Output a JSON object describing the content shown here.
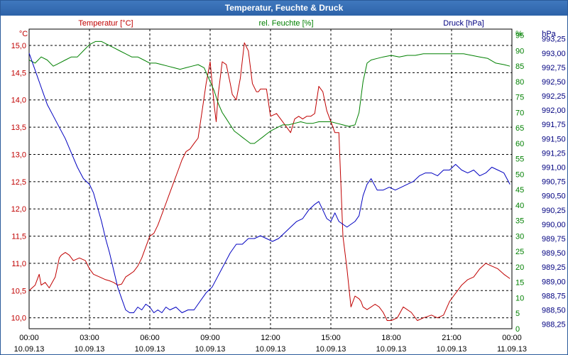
{
  "window": {
    "title": "Temperatur, Feuchte & Druck"
  },
  "chart_data": {
    "type": "line",
    "title": "Temperatur, Feuchte & Druck",
    "x_ticks": [
      {
        "time": "00:00",
        "date": "10.09.13"
      },
      {
        "time": "03:00",
        "date": "10.09.13"
      },
      {
        "time": "06:00",
        "date": "10.09.13"
      },
      {
        "time": "09:00",
        "date": "10.09.13"
      },
      {
        "time": "12:00",
        "date": "10.09.13"
      },
      {
        "time": "15:00",
        "date": "10.09.13"
      },
      {
        "time": "18:00",
        "date": "10.09.13"
      },
      {
        "time": "21:00",
        "date": "10.09.13"
      },
      {
        "time": "00:00",
        "date": "11.09.13"
      }
    ],
    "xlim": [
      0,
      24
    ],
    "grid": true,
    "axes": {
      "temperature": {
        "unit_label": "°C",
        "series_label": "Temperatur [°C]",
        "ylim": [
          9.8,
          15.3
        ],
        "ticks": [
          "10,0",
          "10,5",
          "11,0",
          "11,5",
          "12,0",
          "12,5",
          "13,0",
          "13,5",
          "14,0",
          "14,5",
          "15,0"
        ]
      },
      "humidity": {
        "unit_label": "%",
        "series_label": "rel. Feuchte [%]",
        "ylim": [
          0,
          97
        ],
        "ticks": [
          "0",
          "5",
          "10",
          "15",
          "20",
          "25",
          "30",
          "35",
          "40",
          "45",
          "50",
          "55",
          "60",
          "65",
          "70",
          "75",
          "80",
          "85",
          "90",
          "95"
        ]
      },
      "pressure": {
        "unit_label": "hPa",
        "series_label": "Druck [hPa]",
        "ylim": [
          988.17,
          993.42
        ],
        "ticks": [
          "988,25",
          "988,50",
          "988,75",
          "989,00",
          "989,25",
          "989,50",
          "989,75",
          "990,00",
          "990,25",
          "990,50",
          "990,75",
          "991,00",
          "991,25",
          "991,50",
          "991,75",
          "992,00",
          "992,25",
          "992,50",
          "992,75",
          "993,00",
          "993,25"
        ]
      }
    },
    "colors": {
      "temperature": "#c00000",
      "humidity": "#008000",
      "pressure": "#0000c0",
      "grid": "#000000",
      "title_bar": "#2d63a8"
    },
    "series": [
      {
        "name": "Temperatur [°C]",
        "axis": "temperature",
        "x": [
          0,
          0.3,
          0.5,
          0.6,
          0.8,
          1.0,
          1.3,
          1.5,
          1.6,
          1.8,
          2.0,
          2.2,
          2.5,
          2.8,
          3.0,
          3.2,
          3.5,
          3.8,
          4.0,
          4.2,
          4.4,
          4.6,
          4.8,
          5.0,
          5.2,
          5.4,
          5.6,
          5.8,
          6.0,
          6.2,
          6.4,
          6.6,
          6.8,
          7.0,
          7.2,
          7.4,
          7.6,
          7.8,
          8.0,
          8.2,
          8.4,
          8.6,
          8.8,
          9.0,
          9.1,
          9.2,
          9.3,
          9.4,
          9.6,
          9.8,
          10.0,
          10.1,
          10.3,
          10.5,
          10.7,
          10.9,
          11.1,
          11.3,
          11.4,
          11.5,
          11.6,
          11.8,
          12.0,
          12.3,
          12.5,
          12.8,
          13.0,
          13.2,
          13.4,
          13.6,
          13.8,
          14.0,
          14.2,
          14.4,
          14.6,
          14.8,
          15.0,
          15.2,
          15.4,
          15.6,
          15.8,
          16.0,
          16.2,
          16.4,
          16.5,
          16.6,
          16.8,
          17.0,
          17.2,
          17.4,
          17.6,
          17.8,
          18.0,
          18.3,
          18.6,
          19.0,
          19.3,
          19.6,
          20.0,
          20.3,
          20.6,
          20.9,
          21.1,
          21.3,
          21.5,
          21.8,
          22.1,
          22.4,
          22.7,
          23.0,
          23.3,
          23.6,
          23.9
        ],
        "values": [
          10.5,
          10.6,
          10.8,
          10.6,
          10.65,
          10.55,
          10.75,
          11.1,
          11.15,
          11.2,
          11.15,
          11.05,
          11.1,
          11.05,
          10.9,
          10.8,
          10.75,
          10.7,
          10.68,
          10.65,
          10.6,
          10.62,
          10.75,
          10.8,
          10.85,
          10.95,
          11.1,
          11.3,
          11.5,
          11.55,
          11.7,
          11.9,
          12.1,
          12.3,
          12.5,
          12.7,
          12.9,
          13.05,
          13.1,
          13.2,
          13.3,
          13.8,
          14.3,
          14.7,
          14.3,
          13.9,
          13.6,
          14.1,
          14.7,
          14.65,
          14.3,
          14.1,
          14.0,
          14.4,
          15.05,
          14.9,
          14.3,
          14.15,
          14.15,
          14.2,
          14.2,
          14.2,
          13.7,
          13.75,
          13.65,
          13.5,
          13.4,
          13.65,
          13.7,
          13.65,
          13.7,
          13.7,
          13.75,
          14.25,
          14.15,
          13.8,
          13.6,
          13.4,
          13.4,
          11.5,
          10.9,
          10.2,
          10.4,
          10.35,
          10.3,
          10.2,
          10.15,
          10.2,
          10.25,
          10.2,
          10.1,
          9.95,
          9.95,
          10.0,
          10.2,
          10.1,
          9.95,
          10.0,
          10.05,
          10.0,
          10.05,
          10.3,
          10.4,
          10.5,
          10.6,
          10.7,
          10.75,
          10.9,
          11.0,
          10.95,
          10.9,
          10.8,
          10.72
        ]
      },
      {
        "name": "rel. Feuchte [%]",
        "axis": "humidity",
        "x": [
          0,
          0.3,
          0.6,
          0.9,
          1.2,
          1.5,
          1.8,
          2.1,
          2.4,
          2.7,
          3.0,
          3.3,
          3.6,
          3.9,
          4.2,
          4.5,
          4.8,
          5.1,
          5.4,
          5.7,
          6.0,
          6.3,
          6.6,
          6.9,
          7.2,
          7.5,
          7.8,
          8.1,
          8.4,
          8.7,
          9.0,
          9.2,
          9.4,
          9.6,
          9.8,
          10.0,
          10.2,
          10.4,
          10.6,
          10.8,
          11.0,
          11.2,
          11.4,
          11.6,
          11.8,
          12.0,
          12.3,
          12.6,
          12.9,
          13.2,
          13.5,
          13.8,
          14.1,
          14.4,
          14.7,
          15.0,
          15.3,
          15.6,
          15.9,
          16.2,
          16.4,
          16.6,
          16.8,
          17.0,
          17.3,
          17.6,
          18.0,
          18.4,
          18.8,
          19.2,
          19.6,
          20.0,
          20.4,
          20.8,
          21.2,
          21.6,
          22.0,
          22.4,
          22.8,
          23.2,
          23.6,
          23.9
        ],
        "values": [
          87,
          86,
          88,
          87,
          85,
          86,
          87,
          88,
          88,
          90,
          92,
          93,
          93,
          92,
          91,
          90,
          89,
          88,
          88,
          87,
          86,
          86,
          85.5,
          85,
          84.5,
          84,
          84.5,
          85,
          85.5,
          84.5,
          80,
          77,
          73,
          70,
          68,
          66,
          64,
          63,
          62,
          61,
          60,
          60,
          61,
          62,
          63,
          64,
          65,
          66,
          66,
          66.5,
          67,
          66.5,
          66.5,
          67,
          67,
          67,
          66.5,
          66,
          65.5,
          66,
          70,
          80,
          86,
          87,
          87.5,
          88,
          88.5,
          88,
          88.5,
          88.5,
          89,
          89,
          89,
          89,
          89,
          89,
          88.5,
          88,
          87.5,
          86,
          85.5,
          85
        ]
      },
      {
        "name": "Druck [hPa]",
        "axis": "pressure",
        "x": [
          0,
          0.3,
          0.6,
          0.9,
          1.2,
          1.5,
          1.8,
          2.1,
          2.4,
          2.7,
          3.0,
          3.2,
          3.4,
          3.6,
          3.8,
          4.0,
          4.2,
          4.4,
          4.6,
          4.8,
          5.0,
          5.2,
          5.4,
          5.6,
          5.8,
          6.0,
          6.2,
          6.4,
          6.6,
          6.8,
          7.0,
          7.3,
          7.6,
          7.9,
          8.2,
          8.5,
          8.8,
          9.1,
          9.4,
          9.7,
          10.0,
          10.3,
          10.6,
          10.9,
          11.2,
          11.5,
          11.8,
          12.1,
          12.4,
          12.7,
          13.0,
          13.3,
          13.6,
          13.9,
          14.2,
          14.4,
          14.6,
          14.8,
          15.0,
          15.2,
          15.4,
          15.6,
          15.8,
          16.0,
          16.2,
          16.4,
          16.6,
          16.8,
          17.0,
          17.3,
          17.6,
          17.9,
          18.2,
          18.5,
          18.8,
          19.1,
          19.4,
          19.7,
          20.0,
          20.3,
          20.6,
          20.9,
          21.2,
          21.5,
          21.8,
          22.1,
          22.4,
          22.7,
          23.0,
          23.3,
          23.6,
          23.9
        ],
        "values": [
          993.0,
          992.7,
          992.4,
          992.1,
          991.9,
          991.7,
          991.5,
          991.25,
          991.0,
          990.8,
          990.7,
          990.55,
          990.3,
          990.05,
          989.75,
          989.5,
          989.2,
          988.9,
          988.7,
          988.5,
          988.45,
          988.45,
          988.55,
          988.5,
          988.6,
          988.55,
          988.45,
          988.5,
          988.45,
          988.55,
          988.5,
          988.55,
          988.45,
          988.5,
          988.5,
          988.65,
          988.8,
          988.9,
          989.1,
          989.3,
          989.5,
          989.65,
          989.65,
          989.75,
          989.75,
          989.8,
          989.75,
          989.7,
          989.75,
          989.85,
          989.95,
          990.05,
          990.1,
          990.25,
          990.35,
          990.4,
          990.25,
          990.1,
          990.05,
          990.2,
          990.05,
          990.0,
          989.95,
          990.0,
          990.05,
          990.15,
          990.5,
          990.7,
          990.8,
          990.6,
          990.6,
          990.65,
          990.6,
          990.65,
          990.7,
          990.75,
          990.85,
          990.9,
          990.9,
          990.85,
          990.95,
          990.95,
          991.05,
          990.95,
          990.9,
          990.95,
          990.85,
          990.9,
          991.0,
          990.95,
          990.9,
          990.7
        ]
      }
    ]
  }
}
